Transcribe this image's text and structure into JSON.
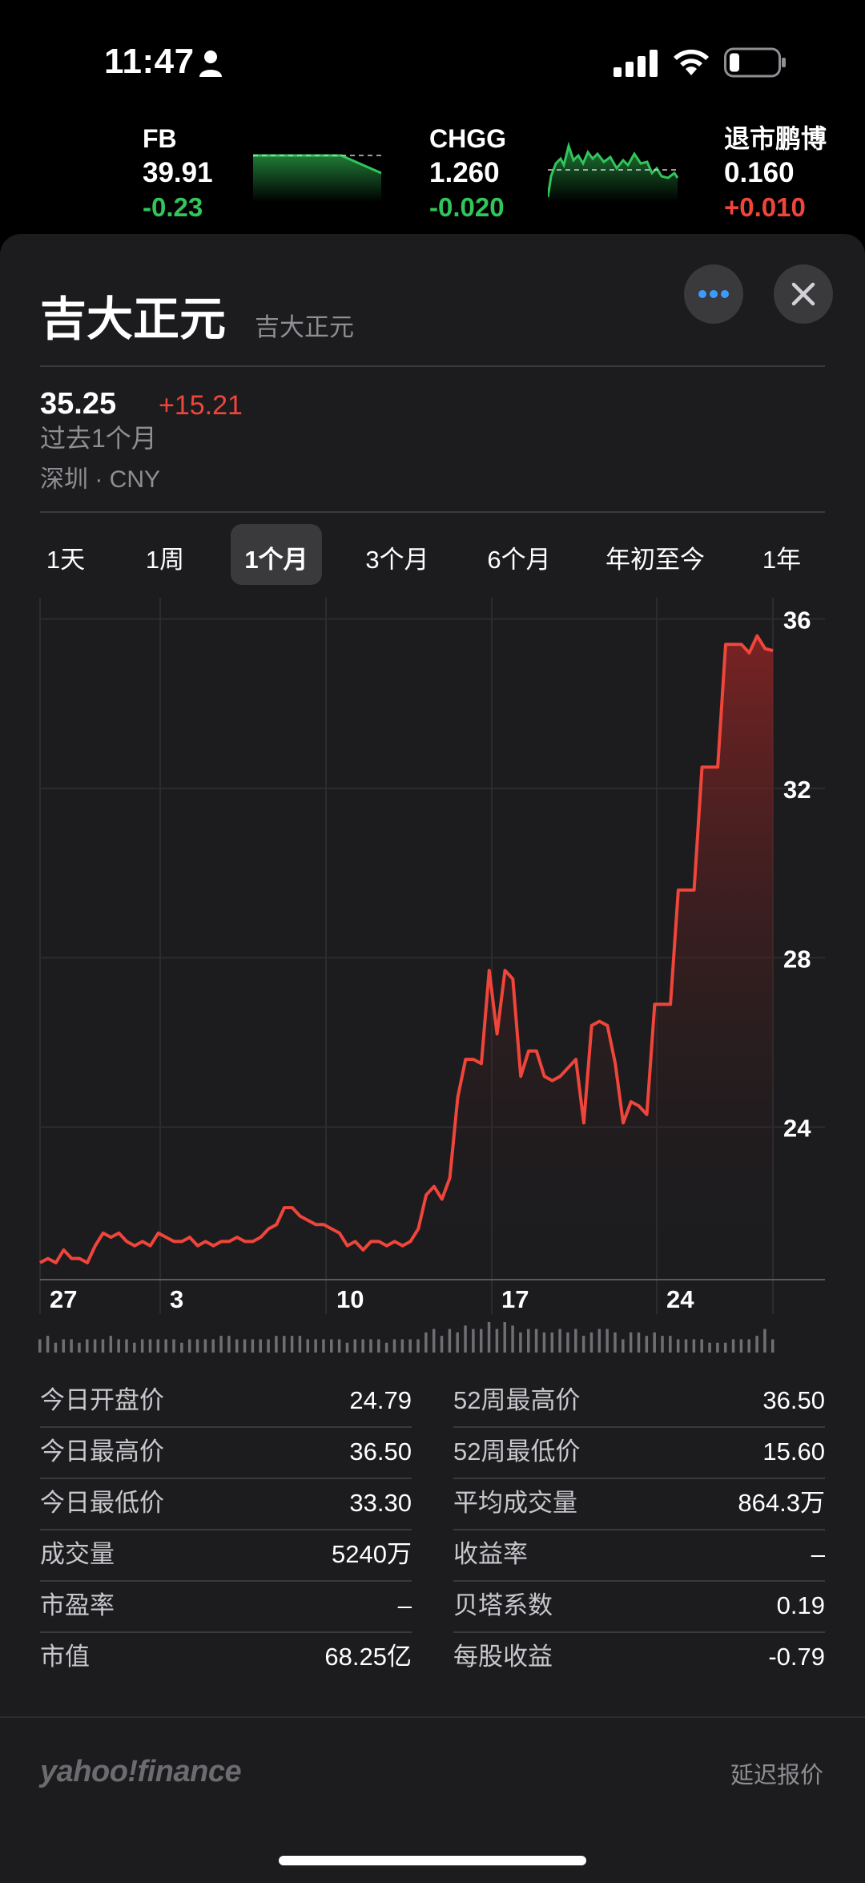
{
  "status_bar": {
    "time": "11:47"
  },
  "tickers": [
    {
      "symbol": "FB",
      "price": "39.91",
      "change": "-0.23",
      "direction": "down"
    },
    {
      "symbol": "CHGG",
      "price": "1.260",
      "change": "-0.020",
      "direction": "down"
    },
    {
      "symbol": "退市鹏博",
      "price": "0.160",
      "change": "+0.010",
      "direction": "up"
    }
  ],
  "stock": {
    "name": "吉大正元",
    "subtitle": "吉大正元",
    "price": "35.25",
    "change": "+15.21",
    "period": "过去1个月",
    "exchange": "深圳 · CNY"
  },
  "range_tabs": [
    "1天",
    "1周",
    "1个月",
    "3个月",
    "6个月",
    "年初至今",
    "1年"
  ],
  "selected_range": "1个月",
  "colors": {
    "up": "#f0453a",
    "down": "#31c55a",
    "sheet": "#1c1c1e"
  },
  "chart_data": {
    "type": "line",
    "x_tick_labels": [
      "27",
      "3",
      "10",
      "17",
      "24"
    ],
    "y_tick_labels": [
      "36",
      "32",
      "28",
      "24"
    ],
    "ylim": [
      20.4,
      36.5
    ],
    "series": [
      {
        "values": [
          20.8,
          20.9,
          20.8,
          21.1,
          20.9,
          20.9,
          20.8,
          21.2,
          21.5,
          21.4,
          21.5,
          21.3,
          21.2,
          21.3,
          21.2,
          21.5,
          21.4,
          21.3,
          21.3,
          21.4,
          21.2,
          21.3,
          21.2,
          21.3,
          21.3,
          21.4,
          21.3,
          21.3,
          21.4,
          21.6,
          21.7,
          22.1,
          22.1,
          21.9,
          21.8,
          21.7,
          21.7,
          21.6,
          21.5,
          21.2,
          21.3,
          21.1,
          21.3,
          21.3,
          21.2,
          21.3,
          21.2,
          21.3,
          21.6,
          22.4,
          22.6,
          22.3,
          22.8,
          24.7,
          25.6,
          25.6,
          25.5,
          27.7,
          26.2,
          27.7,
          27.5,
          25.2,
          25.8,
          25.8,
          25.2,
          25.1,
          25.2,
          25.4,
          25.6,
          24.1,
          26.4,
          26.5,
          26.4,
          25.5,
          24.1,
          24.6,
          24.5,
          24.3,
          26.9,
          26.9,
          26.9,
          29.6,
          29.6,
          29.6,
          32.5,
          32.5,
          32.5,
          35.4,
          35.4,
          35.4,
          35.2,
          35.6,
          35.3,
          35.25
        ]
      }
    ],
    "volume": [
      2,
      3,
      1,
      2,
      2,
      1,
      2,
      2,
      2,
      3,
      2,
      2,
      1,
      2,
      2,
      2,
      2,
      2,
      1,
      2,
      2,
      2,
      2,
      3,
      3,
      2,
      2,
      2,
      2,
      2,
      3,
      3,
      3,
      3,
      2,
      2,
      2,
      2,
      2,
      1,
      2,
      2,
      2,
      2,
      1,
      2,
      2,
      2,
      2,
      4,
      5,
      3,
      5,
      4,
      6,
      5,
      5,
      7,
      5,
      7,
      6,
      4,
      5,
      5,
      4,
      4,
      5,
      4,
      5,
      3,
      4,
      5,
      5,
      4,
      2,
      4,
      4,
      3,
      4,
      3,
      3,
      2,
      2,
      2,
      2,
      1,
      1,
      1,
      2,
      2,
      2,
      3,
      5,
      2
    ]
  },
  "stats": {
    "left": [
      {
        "label": "今日开盘价",
        "value": "24.79"
      },
      {
        "label": "今日最高价",
        "value": "36.50"
      },
      {
        "label": "今日最低价",
        "value": "33.30"
      },
      {
        "label": "成交量",
        "value": "5240万"
      },
      {
        "label": "市盈率",
        "value": "–"
      },
      {
        "label": "市值",
        "value": "68.25亿"
      }
    ],
    "right": [
      {
        "label": "52周最高价",
        "value": "36.50"
      },
      {
        "label": "52周最低价",
        "value": "15.60"
      },
      {
        "label": "平均成交量",
        "value": "864.3万"
      },
      {
        "label": "收益率",
        "value": "–"
      },
      {
        "label": "贝塔系数",
        "value": "0.19"
      },
      {
        "label": "每股收益",
        "value": "-0.79"
      }
    ]
  },
  "footer": {
    "brand": "yahoo!finance",
    "delay_note": "延迟报价"
  }
}
